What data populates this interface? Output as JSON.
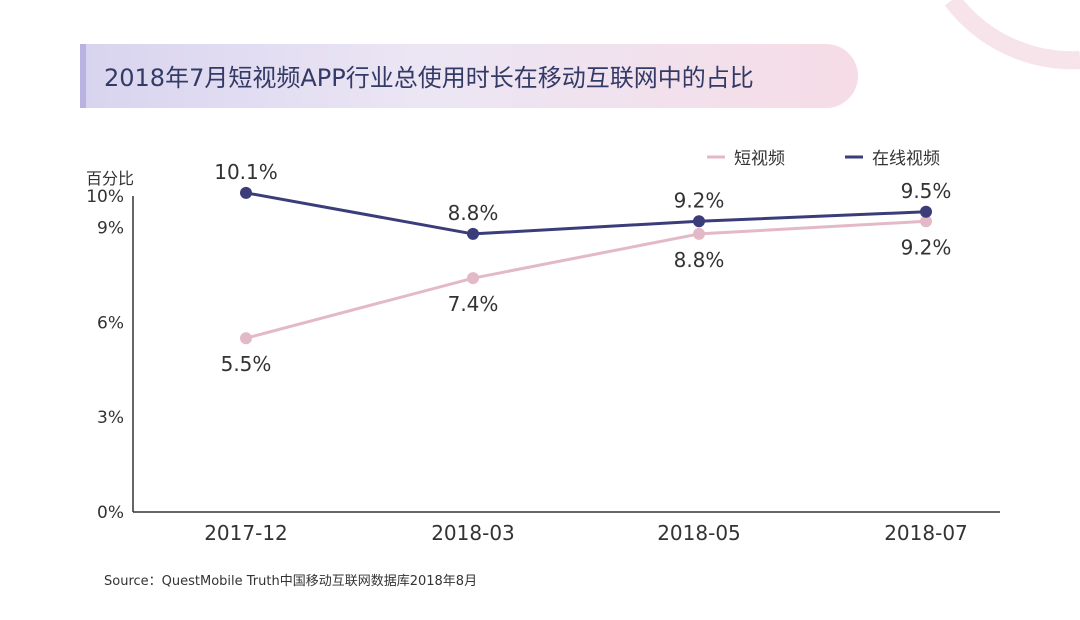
{
  "title": "2018年7月短视频APP行业总使用时长在移动互联网中的占比",
  "source": "Source：QuestMobile Truth中国移动互联网数据库2018年8月",
  "colors": {
    "short_video": "#e3b9c8",
    "online_video": "#3a3d7a",
    "axis": "#333333",
    "label": "#333333"
  },
  "chart_data": {
    "type": "line",
    "title": "2018年7月短视频APP行业总使用时长在移动互联网中的占比",
    "ylabel": "百分比",
    "xlabel": "",
    "categories": [
      "2017-12",
      "2018-03",
      "2018-05",
      "2018-07"
    ],
    "ylim": [
      0,
      10
    ],
    "yticks": [
      0,
      3,
      6,
      9,
      10
    ],
    "ytick_labels": [
      "0%",
      "3%",
      "6%",
      "9%",
      "10%"
    ],
    "legend_position": "top-right",
    "series": [
      {
        "name": "短视频",
        "values": [
          5.5,
          7.4,
          8.8,
          9.2
        ],
        "labels": [
          "5.5%",
          "7.4%",
          "8.8%",
          "9.2%"
        ],
        "label_side": "below"
      },
      {
        "name": "在线视频",
        "values": [
          10.1,
          8.8,
          9.2,
          9.5
        ],
        "labels": [
          "10.1%",
          "8.8%",
          "9.2%",
          "9.5%"
        ],
        "label_side": "above"
      }
    ]
  }
}
